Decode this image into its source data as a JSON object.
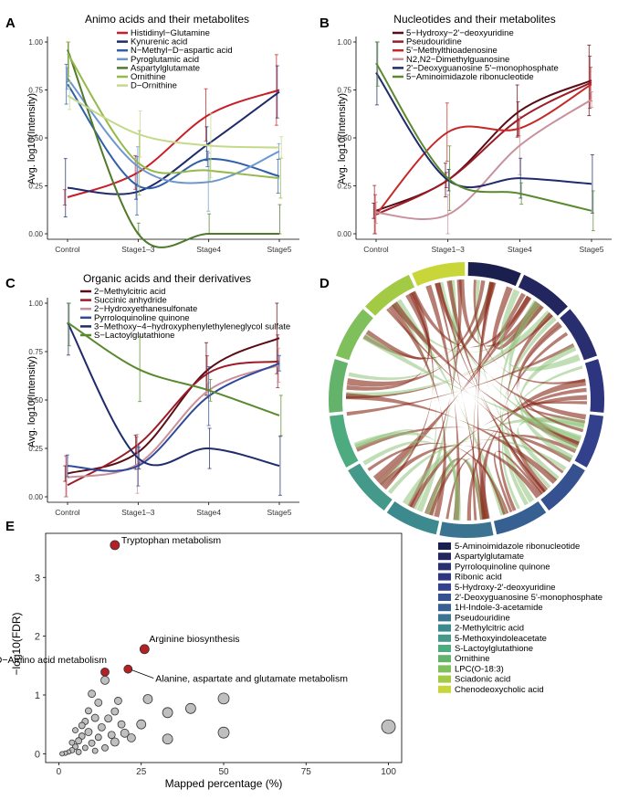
{
  "chart_data": [
    {
      "type": "line",
      "panel": "A",
      "title": "Animo acids and their metabolites",
      "ylabel": "Avg. log10(Intensity)",
      "xlabel": "",
      "categories": [
        "Control",
        "Stage1–3",
        "Stage4",
        "Stage5"
      ],
      "ylim": [
        0,
        1
      ],
      "yticks": [
        "0.00",
        "0.25",
        "0.50",
        "0.75",
        "1.00"
      ],
      "legend_position": "top",
      "series": [
        {
          "name": "Histidinyl−Glutamine",
          "color": "#c81e27",
          "values": [
            0.19,
            0.32,
            0.62,
            0.75
          ]
        },
        {
          "name": "Kynurenic acid",
          "color": "#1f2b6b",
          "values": [
            0.24,
            0.22,
            0.47,
            0.74
          ]
        },
        {
          "name": "N−Methyl−D−aspartic acid",
          "color": "#2f5fa9",
          "values": [
            0.78,
            0.25,
            0.39,
            0.3
          ]
        },
        {
          "name": "Pyroglutamic acid",
          "color": "#6d97cf",
          "values": [
            0.81,
            0.35,
            0.27,
            0.43
          ]
        },
        {
          "name": "Aspartylglutamate",
          "color": "#4e7a2a",
          "values": [
            0.96,
            0.0,
            0.0,
            0.0
          ]
        },
        {
          "name": "Ornithine",
          "color": "#95b94b",
          "values": [
            0.94,
            0.37,
            0.33,
            0.29
          ]
        },
        {
          "name": "D−Ornithine",
          "color": "#c5d98a",
          "values": [
            0.72,
            0.52,
            0.46,
            0.45
          ]
        }
      ]
    },
    {
      "type": "line",
      "panel": "B",
      "title": "Nucleotides and their metabolites",
      "ylabel": "Avg. log10(Intensity)",
      "xlabel": "",
      "categories": [
        "Control",
        "Stage1–3",
        "Stage4",
        "Stage5"
      ],
      "ylim": [
        0,
        1
      ],
      "yticks": [
        "0.00",
        "0.25",
        "0.50",
        "0.75",
        "1.00"
      ],
      "legend_position": "top",
      "series": [
        {
          "name": "5−Hydroxy−2'−deoxyuridine",
          "color": "#5a0c16",
          "values": [
            0.12,
            0.28,
            0.64,
            0.8
          ]
        },
        {
          "name": "Pseudouridine",
          "color": "#9c1b25",
          "values": [
            0.1,
            0.28,
            0.6,
            0.79
          ]
        },
        {
          "name": "5'−Methylthioadenosine",
          "color": "#c62828",
          "values": [
            0.1,
            0.53,
            0.55,
            0.78
          ]
        },
        {
          "name": "N2,N2−Dimethylguanosine",
          "color": "#c9909c",
          "values": [
            0.11,
            0.1,
            0.46,
            0.7
          ]
        },
        {
          "name": "2'−Deoxyguanosine 5'−monophosphate",
          "color": "#1f2b6b",
          "values": [
            0.84,
            0.28,
            0.29,
            0.26
          ]
        },
        {
          "name": "5−Aminoimidazole ribonucleotide",
          "color": "#5a8a2e",
          "values": [
            0.89,
            0.29,
            0.21,
            0.12
          ]
        }
      ]
    },
    {
      "type": "line",
      "panel": "C",
      "title": "Organic acids and their derivatives",
      "ylabel": "Avg. log10(Intensity)",
      "xlabel": "",
      "categories": [
        "Control",
        "Stage1–3",
        "Stage4",
        "Stage5"
      ],
      "ylim": [
        0,
        1
      ],
      "yticks": [
        "0.00",
        "0.25",
        "0.50",
        "0.75",
        "1.00"
      ],
      "legend_position": "top",
      "series": [
        {
          "name": "2−Methylcitric acid",
          "color": "#5a0c16",
          "values": [
            0.12,
            0.23,
            0.66,
            0.82
          ]
        },
        {
          "name": "Succinic anhydride",
          "color": "#9c1b25",
          "values": [
            0.06,
            0.27,
            0.64,
            0.7
          ]
        },
        {
          "name": "2−Hydroxyethanesulfonate",
          "color": "#c9909c",
          "values": [
            0.1,
            0.17,
            0.55,
            0.68
          ]
        },
        {
          "name": "Pyrroloquinoline quinone",
          "color": "#2f4a9a",
          "values": [
            0.16,
            0.16,
            0.52,
            0.69
          ]
        },
        {
          "name": "3−Methoxy−4−hydroxyphenylethyleneglycol sulfate",
          "color": "#1f2b6b",
          "values": [
            0.9,
            0.2,
            0.25,
            0.16
          ]
        },
        {
          "name": "S−Lactoylglutathione",
          "color": "#5a8a2e",
          "values": [
            0.9,
            0.66,
            0.55,
            0.42
          ]
        }
      ]
    },
    {
      "type": "chord",
      "panel": "D",
      "title": "",
      "legend": [
        {
          "name": "5-Aminoimidazole ribonucleotide",
          "color": "#1b1f4d"
        },
        {
          "name": "Aspartylglutamate",
          "color": "#23265e"
        },
        {
          "name": "Pyrroloquinoline quinone",
          "color": "#282e6e"
        },
        {
          "name": "Ribonic acid",
          "color": "#2e3580"
        },
        {
          "name": "5-Hydroxy-2'-deoxyuridine",
          "color": "#33418c"
        },
        {
          "name": "2'-Deoxyguanosine 5'-monophosphate",
          "color": "#35518f"
        },
        {
          "name": "1H-Indole-3-acetamide",
          "color": "#376092"
        },
        {
          "name": "Pseudouridine",
          "color": "#3a7490"
        },
        {
          "name": "2-Methylcitric acid",
          "color": "#3d8a8e"
        },
        {
          "name": "5-Methoxyindoleacetate",
          "color": "#44998a"
        },
        {
          "name": "S-Lactoylglutathione",
          "color": "#4eaa7f"
        },
        {
          "name": "Ornithine",
          "color": "#63b36b"
        },
        {
          "name": "LPC(O-18:3)",
          "color": "#7fbf5c"
        },
        {
          "name": "Sciadonic acid",
          "color": "#a3ca45"
        },
        {
          "name": "Chenodeoxycholic acid",
          "color": "#c8d63a"
        }
      ]
    },
    {
      "type": "scatter",
      "panel": "E",
      "xlabel": "Mapped percentage (%)",
      "ylabel": "−log10(FDR)",
      "xlim": [
        -4,
        104
      ],
      "ylim": [
        -0.15,
        3.75
      ],
      "xticks": [
        0,
        25,
        50,
        75,
        100
      ],
      "yticks": [
        0,
        1,
        2,
        3
      ],
      "points": [
        {
          "x": 17,
          "y": 3.55,
          "size": 5,
          "highlight": true
        },
        {
          "x": 26,
          "y": 1.78,
          "size": 5,
          "highlight": true
        },
        {
          "x": 14,
          "y": 1.39,
          "size": 4.5,
          "highlight": true
        },
        {
          "x": 21,
          "y": 1.44,
          "size": 4.5,
          "highlight": true
        },
        {
          "x": 100,
          "y": 0.46,
          "size": 7.5
        },
        {
          "x": 50,
          "y": 0.94,
          "size": 6
        },
        {
          "x": 50,
          "y": 0.36,
          "size": 6
        },
        {
          "x": 40,
          "y": 0.77,
          "size": 5.5
        },
        {
          "x": 33,
          "y": 0.7,
          "size": 5.5
        },
        {
          "x": 33,
          "y": 0.25,
          "size": 5.5
        },
        {
          "x": 27,
          "y": 0.93,
          "size": 5
        },
        {
          "x": 25,
          "y": 0.5,
          "size": 5
        },
        {
          "x": 20,
          "y": 0.35,
          "size": 4.5
        },
        {
          "x": 17,
          "y": 0.2,
          "size": 4.5
        },
        {
          "x": 14,
          "y": 1.25,
          "size": 4.5
        },
        {
          "x": 12,
          "y": 0.87,
          "size": 4
        },
        {
          "x": 10,
          "y": 1.02,
          "size": 4
        },
        {
          "x": 11,
          "y": 0.61,
          "size": 4
        },
        {
          "x": 9,
          "y": 0.37,
          "size": 4
        },
        {
          "x": 8,
          "y": 0.55,
          "size": 3.5
        },
        {
          "x": 7,
          "y": 0.3,
          "size": 3.5
        },
        {
          "x": 6,
          "y": 0.22,
          "size": 3.5
        },
        {
          "x": 5,
          "y": 0.12,
          "size": 3
        },
        {
          "x": 4,
          "y": 0.06,
          "size": 3
        },
        {
          "x": 3,
          "y": 0.03,
          "size": 2.5
        },
        {
          "x": 2,
          "y": 0.01,
          "size": 2.5
        },
        {
          "x": 1,
          "y": 0.0,
          "size": 2.5
        },
        {
          "x": 6,
          "y": 0.03,
          "size": 3
        },
        {
          "x": 8,
          "y": 0.1,
          "size": 3
        },
        {
          "x": 10,
          "y": 0.18,
          "size": 3.5
        },
        {
          "x": 13,
          "y": 0.45,
          "size": 4
        },
        {
          "x": 15,
          "y": 0.6,
          "size": 4
        },
        {
          "x": 17,
          "y": 0.72,
          "size": 4
        },
        {
          "x": 12,
          "y": 0.28,
          "size": 3.5
        },
        {
          "x": 9,
          "y": 0.73,
          "size": 3.5
        },
        {
          "x": 14,
          "y": 0.1,
          "size": 3.5
        },
        {
          "x": 11,
          "y": 0.05,
          "size": 3
        },
        {
          "x": 7,
          "y": 0.48,
          "size": 3.5
        },
        {
          "x": 16,
          "y": 0.32,
          "size": 4
        },
        {
          "x": 19,
          "y": 0.5,
          "size": 4
        },
        {
          "x": 22,
          "y": 0.27,
          "size": 4.5
        },
        {
          "x": 5,
          "y": 0.4,
          "size": 3
        },
        {
          "x": 4,
          "y": 0.19,
          "size": 3
        },
        {
          "x": 18,
          "y": 0.9,
          "size": 4
        }
      ],
      "annotations": [
        {
          "label": "Tryptophan metabolism",
          "x": 17,
          "y": 3.55
        },
        {
          "label": "Arginine biosynthesis",
          "x": 26,
          "y": 1.78
        },
        {
          "label": "D−Amino acid metabolism",
          "x": 14,
          "y": 1.39
        },
        {
          "label": "Alanine, aspartate and glutamate metabolism",
          "x": 21,
          "y": 1.44
        }
      ]
    }
  ],
  "panel_letters": {
    "a": "A",
    "b": "B",
    "c": "C",
    "d": "D",
    "e": "E"
  }
}
